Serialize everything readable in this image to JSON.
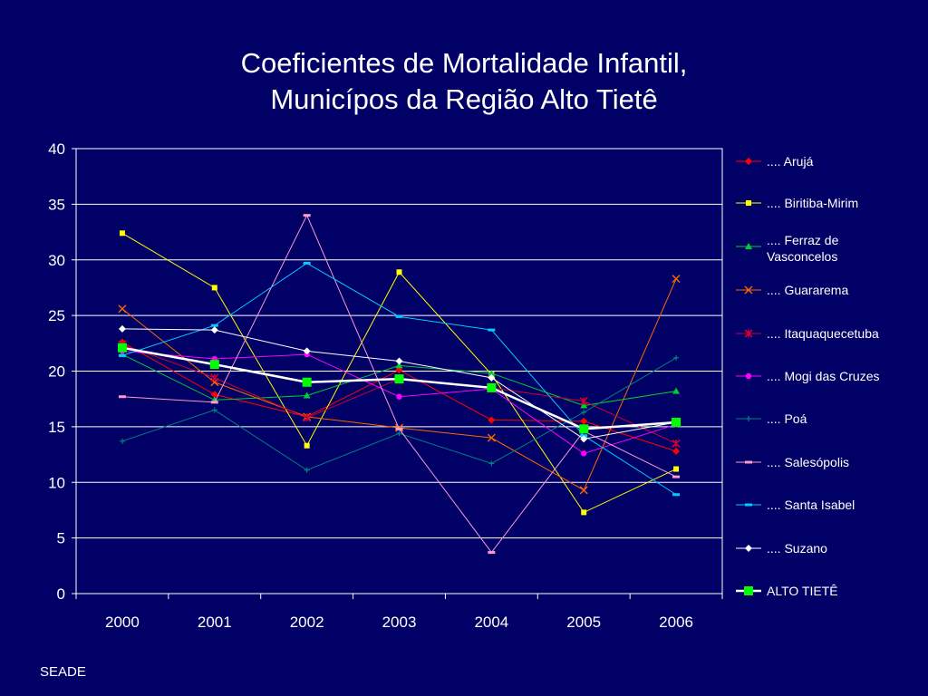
{
  "slide": {
    "title_line1": "Coeficientes de Mortalidade Infantil,",
    "title_line2": "Municípos da Região Alto Tietê",
    "source": "SEADE"
  },
  "chart_data": {
    "type": "line",
    "categories": [
      "2000",
      "2001",
      "2002",
      "2003",
      "2004",
      "2005",
      "2006"
    ],
    "ylim": [
      0,
      40
    ],
    "yticks": [
      "0",
      "5",
      "10",
      "15",
      "20",
      "25",
      "30",
      "35",
      "40"
    ],
    "grid": "horizontal",
    "legend": "right",
    "series": [
      {
        "name": ".... Arujá",
        "color": "#ff0000",
        "marker": "diamond",
        "values": [
          22.6,
          17.9,
          15.9,
          20.1,
          15.6,
          15.5,
          12.8
        ]
      },
      {
        "name": ".... Biritiba-Mirim",
        "color": "#ffff00",
        "marker": "square",
        "values": [
          32.4,
          27.5,
          13.3,
          28.9,
          19.7,
          7.3,
          11.2
        ]
      },
      {
        "name": ".... Ferraz de Vasconcelos",
        "color": "#00cc33",
        "marker": "triangle",
        "values": [
          21.5,
          17.4,
          17.8,
          20.5,
          19.8,
          16.9,
          18.2
        ]
      },
      {
        "name": ".... Guararema",
        "color": "#ff6600",
        "marker": "x",
        "values": [
          25.6,
          19.0,
          15.9,
          14.9,
          14.0,
          9.3,
          28.3
        ]
      },
      {
        "name": ".... Itaquaquecetuba",
        "color": "#cc0033",
        "marker": "star",
        "values": [
          22.4,
          19.4,
          15.8,
          19.3,
          18.5,
          17.3,
          13.5
        ]
      },
      {
        "name": ".... Mogi das Cruzes",
        "color": "#ff00ff",
        "marker": "circle",
        "values": [
          21.8,
          21.1,
          21.5,
          17.7,
          18.4,
          12.6,
          15.2
        ]
      },
      {
        "name": ".... Poá",
        "color": "#008080",
        "marker": "plus",
        "values": [
          13.7,
          16.5,
          11.1,
          14.4,
          11.7,
          16.3,
          21.2
        ]
      },
      {
        "name": ".... Salesópolis",
        "color": "#ff99cc",
        "marker": "dash",
        "values": [
          17.7,
          17.2,
          34.0,
          14.8,
          3.7,
          14.6,
          10.5
        ]
      },
      {
        "name": ".... Santa Isabel",
        "color": "#00ccff",
        "marker": "dash",
        "values": [
          21.4,
          24.1,
          29.7,
          24.9,
          23.7,
          14.2,
          8.9
        ]
      },
      {
        "name": ".... Suzano",
        "color": "#ffffff",
        "marker": "diamond",
        "values": [
          23.8,
          23.7,
          21.8,
          20.9,
          19.4,
          13.9,
          15.4
        ]
      },
      {
        "name": "ALTO TIETÊ",
        "color": "#00ff00",
        "lineColor": "#ffffff",
        "marker": "bigsquare",
        "thick": true,
        "values": [
          22.1,
          20.6,
          19.0,
          19.3,
          18.5,
          14.8,
          15.4
        ]
      }
    ]
  }
}
